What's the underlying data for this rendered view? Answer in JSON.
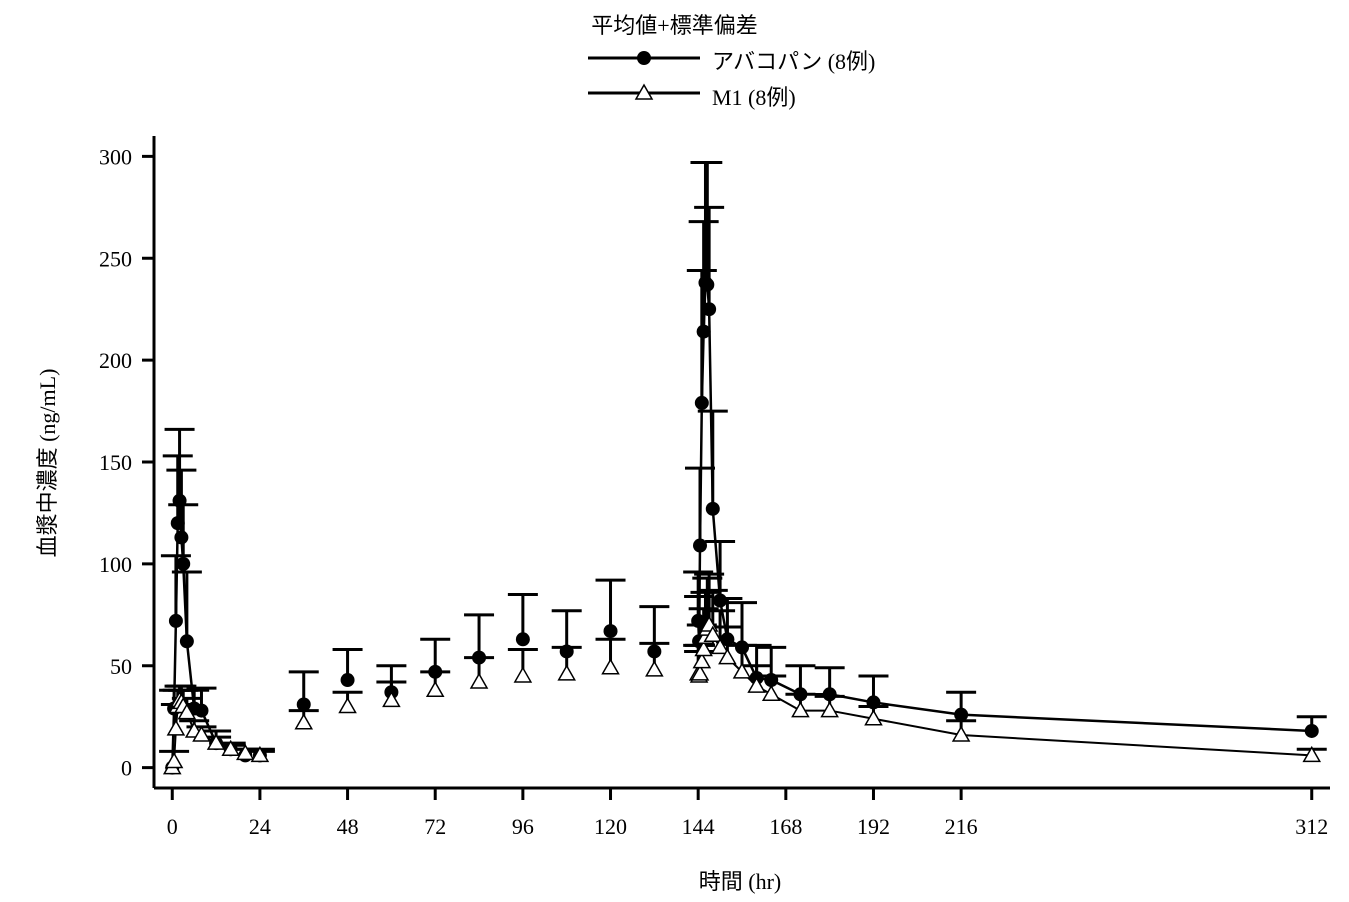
{
  "chart_data": {
    "type": "line",
    "title": "",
    "legend": {
      "title": "平均値+標準偏差",
      "position": "top-center",
      "entries": [
        "アバコパン (8例)",
        "M1 (8例)"
      ]
    },
    "xlabel": "時間 (hr)",
    "ylabel": "血漿中濃度 (ng/mL)",
    "xlim": [
      -5,
      317
    ],
    "ylim": [
      -10,
      310
    ],
    "xticks": [
      0,
      24,
      48,
      72,
      96,
      120,
      144,
      168,
      192,
      216,
      312
    ],
    "yticks": [
      0,
      50,
      100,
      150,
      200,
      250,
      300
    ],
    "grid": false,
    "series": [
      {
        "name": "アバコパン (8例)",
        "marker": "filled-circle",
        "line_segments": [
          [
            0,
            16
          ],
          [
            144,
            312
          ]
        ],
        "x": [
          0,
          0.5,
          1,
          1.5,
          2,
          2.5,
          3,
          4,
          6,
          8,
          12,
          16,
          20,
          24,
          36,
          48,
          60,
          72,
          84,
          96,
          108,
          120,
          132,
          144,
          144.25,
          144.5,
          145,
          145.5,
          146,
          146.5,
          147,
          148,
          150,
          152,
          156,
          160,
          164,
          172,
          180,
          192,
          216,
          312
        ],
        "values": [
          0,
          29,
          72,
          120,
          131,
          113,
          100,
          62,
          29,
          28,
          12,
          9,
          6,
          6,
          31,
          43,
          37,
          47,
          54,
          63,
          57,
          67,
          57,
          72,
          62,
          109,
          179,
          214,
          238,
          237,
          225,
          127,
          82,
          63,
          59,
          44,
          43,
          36,
          36,
          32,
          26,
          18
        ],
        "error": [
          0,
          9,
          32,
          33,
          35,
          33,
          29,
          34,
          9,
          11,
          6,
          3,
          3,
          3,
          16,
          15,
          13,
          16,
          21,
          22,
          20,
          25,
          22,
          24,
          22,
          38,
          65,
          54,
          59,
          60,
          50,
          48,
          29,
          20,
          22,
          16,
          16,
          14,
          13,
          13,
          11,
          7
        ]
      },
      {
        "name": "M1 (8例)",
        "marker": "open-triangle",
        "line_segments": [
          [
            0,
            16
          ],
          [
            144,
            312
          ]
        ],
        "x": [
          0,
          0.5,
          1,
          1.5,
          2,
          2.5,
          3,
          4,
          6,
          8,
          12,
          16,
          20,
          24,
          36,
          48,
          60,
          72,
          84,
          96,
          108,
          120,
          132,
          144,
          144.25,
          144.5,
          145,
          145.5,
          146,
          146.5,
          147,
          148,
          150,
          152,
          156,
          160,
          164,
          172,
          180,
          192,
          216,
          312
        ],
        "values": [
          0,
          3,
          19,
          30,
          33,
          32,
          30,
          27,
          18,
          16,
          12,
          9,
          7,
          6,
          22,
          30,
          33,
          38,
          42,
          45,
          46,
          49,
          48,
          46,
          45,
          46,
          52,
          58,
          64,
          68,
          70,
          65,
          59,
          54,
          47,
          40,
          36,
          28,
          28,
          24,
          16,
          6
        ],
        "error": [
          0,
          5,
          12,
          8,
          7,
          8,
          8,
          7,
          5,
          4,
          3,
          2,
          2,
          2,
          6,
          7,
          9,
          9,
          12,
          13,
          13,
          14,
          13,
          14,
          12,
          14,
          18,
          20,
          22,
          25,
          25,
          22,
          18,
          15,
          13,
          10,
          9,
          8,
          7,
          6,
          7,
          3
        ]
      }
    ]
  }
}
